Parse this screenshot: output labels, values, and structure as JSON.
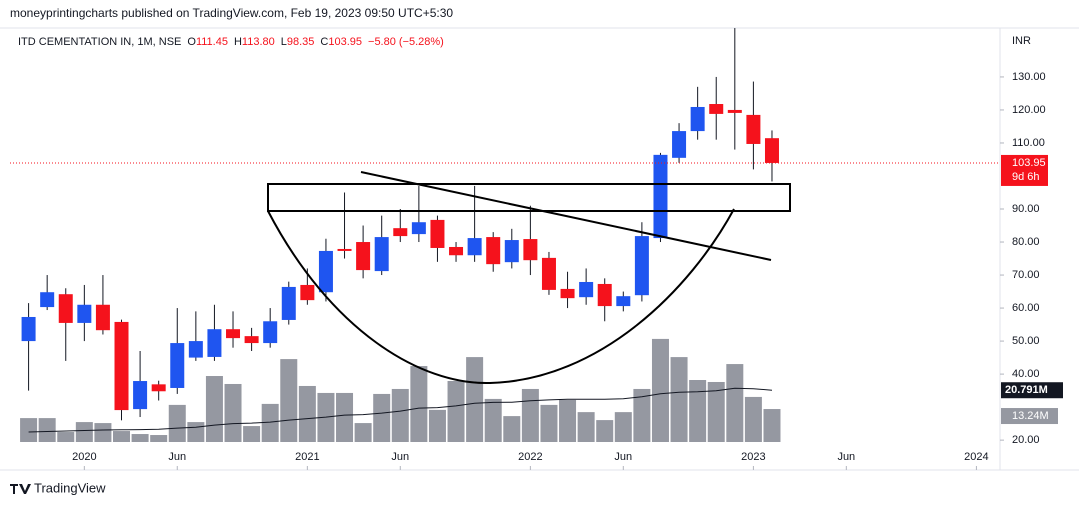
{
  "header": {
    "published": "moneyprintingcharts published on TradingView.com, Feb 19, 2023 09:50 UTC+5:30",
    "symbol": "ITD CEMENTATION IN, 1M, NSE",
    "legend": [
      {
        "key": "O",
        "value": "111.45"
      },
      {
        "key": "H",
        "value": "113.80"
      },
      {
        "key": "L",
        "value": "98.35"
      },
      {
        "key": "C",
        "value": "103.95"
      }
    ],
    "change": "−5.80 (−5.28%)"
  },
  "chart_data": {
    "type": "candlestick",
    "currency": "INR",
    "x": [
      "2019-10",
      "2019-11",
      "2019-12",
      "2020-01",
      "2020-02",
      "2020-03",
      "2020-04",
      "2020-05",
      "2020-06",
      "2020-07",
      "2020-08",
      "2020-09",
      "2020-10",
      "2020-11",
      "2020-12",
      "2021-01",
      "2021-02",
      "2021-03",
      "2021-04",
      "2021-05",
      "2021-06",
      "2021-07",
      "2021-08",
      "2021-09",
      "2021-10",
      "2021-11",
      "2021-12",
      "2022-01",
      "2022-02",
      "2022-03",
      "2022-04",
      "2022-05",
      "2022-06",
      "2022-07",
      "2022-08",
      "2022-09",
      "2022-10",
      "2022-11",
      "2022-12",
      "2023-01",
      "2023-02"
    ],
    "open": [
      50,
      60.3,
      64.2,
      55.5,
      61,
      55.8,
      29.4,
      36.9,
      35.8,
      45,
      45.2,
      53.6,
      51.5,
      49.4,
      56.4,
      67,
      64.8,
      77.9,
      80,
      71.2,
      84.2,
      82.4,
      86.7,
      78.5,
      76,
      81.5,
      73.9,
      80.9,
      75.2,
      65.8,
      63.3,
      67.3,
      60.6,
      63.9,
      81.2,
      105.5,
      113.6,
      121.8,
      120,
      118.5,
      111.45
    ],
    "high": [
      61.5,
      70,
      66,
      67,
      70,
      56.5,
      47,
      38,
      60,
      59,
      61,
      59,
      54,
      60,
      68,
      72,
      81,
      95,
      85,
      88,
      90,
      97,
      88,
      80,
      97,
      83,
      84,
      91,
      77,
      71,
      72,
      69,
      65,
      86,
      107,
      116,
      127,
      130,
      144.8,
      128.6,
      113.8
    ],
    "low": [
      35,
      59.4,
      44,
      50,
      52,
      26,
      27,
      32,
      34,
      44,
      44,
      48,
      47,
      48,
      55,
      61,
      62,
      75,
      69,
      70,
      80,
      80,
      74,
      74,
      74,
      71,
      72,
      70,
      64,
      60,
      61,
      56,
      59,
      62,
      80,
      104,
      111,
      111,
      108,
      102,
      98.35
    ],
    "close": [
      57.3,
      64.8,
      55.5,
      61,
      53.3,
      29.1,
      37.9,
      34.8,
      49.4,
      50,
      53.6,
      50.9,
      49.4,
      56,
      66.4,
      62.4,
      77.3,
      77.3,
      71.5,
      81.5,
      81.8,
      86,
      78.2,
      76,
      81.2,
      73.3,
      80.6,
      74.5,
      65.5,
      63,
      67.9,
      60.6,
      63.6,
      81.8,
      106.4,
      113.6,
      120.9,
      118.8,
      119.1,
      109.7,
      103.95
    ],
    "volume": [
      9.6,
      9.6,
      4,
      8,
      7.6,
      4.4,
      3.2,
      2.8,
      14.9,
      8,
      26.5,
      23.3,
      6.4,
      15.3,
      33.3,
      22.5,
      19.7,
      19.7,
      7.6,
      19.3,
      21.3,
      30.5,
      12.9,
      24.5,
      34.1,
      17.3,
      10.4,
      21.3,
      14.9,
      16.9,
      12,
      8.8,
      12,
      21.3,
      41.4,
      34.1,
      24.9,
      24.1,
      31.3,
      18.1,
      13.24
    ],
    "volume_label": "13.24M",
    "volume_ma": [
      4,
      4.2,
      4.4,
      4.6,
      4.8,
      4.9,
      5,
      5.1,
      5.6,
      5.9,
      6.8,
      7.4,
      7.6,
      8,
      8.8,
      9.4,
      10,
      10.8,
      11,
      11.6,
      12.4,
      13.6,
      13.8,
      14.5,
      15.6,
      15.9,
      16,
      16.6,
      16.9,
      17.2,
      17.2,
      17.2,
      17.4,
      18.2,
      19.4,
      20,
      20.2,
      20.6,
      21.6,
      21.4,
      20.791
    ],
    "volume_ma_label": "20.791M",
    "countdown": "9d 6h",
    "up_color": "#1f55f0",
    "down_color": "#f5121c",
    "volume_color": "#9598a1",
    "xlim": [
      "2019-09",
      "2024-02"
    ],
    "xticks": [
      {
        "value": "2020-01",
        "label": "2020"
      },
      {
        "value": "2020-06",
        "label": "Jun"
      },
      {
        "value": "2021-01",
        "label": "2021"
      },
      {
        "value": "2021-06",
        "label": "Jun"
      },
      {
        "value": "2022-01",
        "label": "2022"
      },
      {
        "value": "2022-06",
        "label": "Jun"
      },
      {
        "value": "2023-01",
        "label": "2023"
      },
      {
        "value": "2023-06",
        "label": "Jun"
      },
      {
        "value": "2024-01",
        "label": "2024"
      }
    ],
    "ylim": [
      15.5,
      153.3
    ],
    "yticks": [
      {
        "value": 130,
        "label": "130.00"
      },
      {
        "value": 120,
        "label": "120.00"
      },
      {
        "value": 110,
        "label": "110.00"
      },
      {
        "value": 90,
        "label": "90.00"
      },
      {
        "value": 80,
        "label": "80.00"
      },
      {
        "value": 70,
        "label": "70.00"
      },
      {
        "value": 60,
        "label": "60.00"
      },
      {
        "value": 50,
        "label": "50.00"
      },
      {
        "value": 40,
        "label": "40.00"
      },
      {
        "value": 20,
        "label": "20.00"
      }
    ]
  },
  "footer": {
    "brand": "TradingView"
  }
}
